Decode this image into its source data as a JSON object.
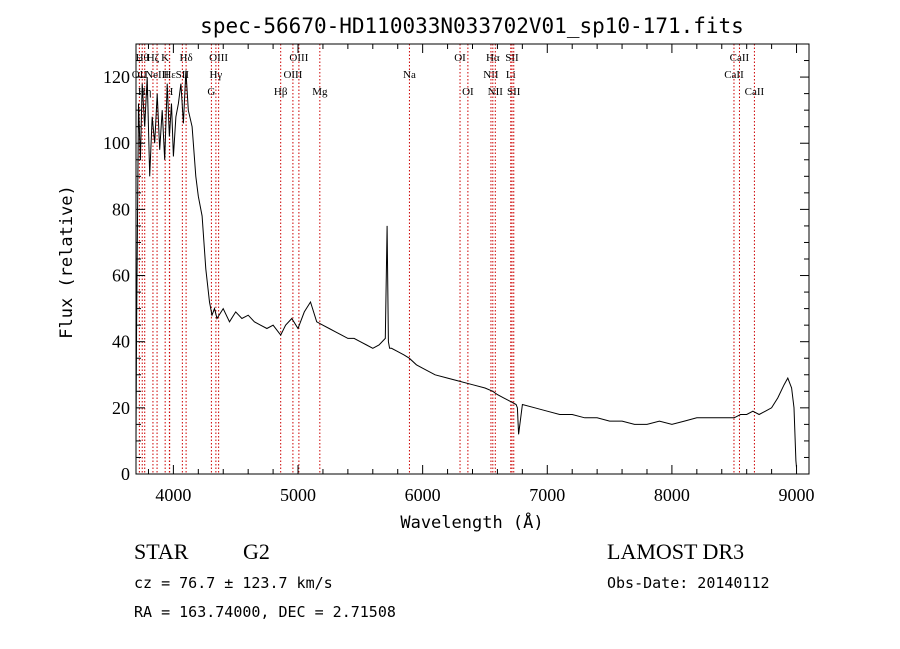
{
  "chart_data": {
    "type": "line",
    "title": "spec-56670-HD110033N033702V01_sp10-171.fits",
    "xlabel": "Wavelength (Å)",
    "ylabel": "Flux (relative)",
    "xlim": [
      3700,
      9100
    ],
    "ylim": [
      0,
      130
    ],
    "xticks": [
      4000,
      5000,
      6000,
      7000,
      8000,
      9000
    ],
    "xtick_labels": [
      "4000",
      "5000",
      "6000",
      "7000",
      "8000",
      "9000"
    ],
    "yticks": [
      0,
      20,
      40,
      60,
      80,
      100,
      120
    ],
    "ytick_labels": [
      "0",
      "20",
      "40",
      "60",
      "80",
      "100",
      "120"
    ],
    "series": [
      {
        "name": "spectrum",
        "x": [
          3700,
          3705,
          3720,
          3735,
          3750,
          3770,
          3790,
          3810,
          3830,
          3850,
          3870,
          3890,
          3910,
          3930,
          3950,
          3968,
          3985,
          4000,
          4020,
          4040,
          4060,
          4080,
          4100,
          4120,
          4150,
          4180,
          4200,
          4230,
          4260,
          4290,
          4310,
          4330,
          4350,
          4400,
          4450,
          4500,
          4550,
          4600,
          4650,
          4700,
          4750,
          4800,
          4861,
          4900,
          4950,
          5000,
          5050,
          5100,
          5150,
          5200,
          5250,
          5300,
          5350,
          5400,
          5450,
          5500,
          5550,
          5600,
          5650,
          5700,
          5715,
          5725,
          5735,
          5750,
          5800,
          5850,
          5893,
          5950,
          6000,
          6100,
          6200,
          6300,
          6400,
          6500,
          6563,
          6600,
          6650,
          6700,
          6750,
          6760,
          6770,
          6800,
          6900,
          7000,
          7100,
          7200,
          7300,
          7400,
          7500,
          7600,
          7700,
          7800,
          7900,
          8000,
          8100,
          8200,
          8300,
          8400,
          8500,
          8550,
          8600,
          8650,
          8700,
          8750,
          8800,
          8850,
          8900,
          8930,
          8960,
          8980,
          8995,
          9000
        ],
        "values": [
          10,
          45,
          112,
          95,
          118,
          105,
          120,
          90,
          108,
          100,
          115,
          98,
          110,
          95,
          118,
          102,
          112,
          96,
          108,
          112,
          118,
          106,
          122,
          110,
          105,
          90,
          84,
          78,
          62,
          52,
          48,
          50,
          47,
          50,
          46,
          49,
          47,
          48,
          46,
          45,
          44,
          45,
          42,
          45,
          47,
          44,
          49,
          52,
          46,
          45,
          44,
          43,
          42,
          41,
          41,
          40,
          39,
          38,
          39,
          41,
          75,
          40,
          38,
          38,
          37,
          36,
          35,
          33,
          32,
          30,
          29,
          28,
          27,
          26,
          25,
          24,
          23,
          22,
          21,
          20,
          12,
          21,
          20,
          19,
          18,
          18,
          17,
          17,
          16,
          16,
          15,
          15,
          16,
          15,
          16,
          17,
          17,
          17,
          17,
          18,
          18,
          19,
          18,
          19,
          20,
          23,
          27,
          29,
          26,
          20,
          4,
          2
        ]
      }
    ],
    "line_markers": [
      {
        "label": "OII",
        "x": 3727,
        "row": 2
      },
      {
        "label": "Hθ",
        "x": 3750,
        "row": 1
      },
      {
        "label": "Hη",
        "x": 3770,
        "row": 3
      },
      {
        "label": "Hζ",
        "x": 3836,
        "row": 1
      },
      {
        "label": "NeIII",
        "x": 3869,
        "row": 2
      },
      {
        "label": "K",
        "x": 3934,
        "row": 1
      },
      {
        "label": "H",
        "x": 3968,
        "row": 3
      },
      {
        "label": "Hε",
        "x": 3970,
        "row": 2
      },
      {
        "label": "SII",
        "x": 4072,
        "row": 2
      },
      {
        "label": "Hδ",
        "x": 4102,
        "row": 1
      },
      {
        "label": "G",
        "x": 4305,
        "row": 3
      },
      {
        "label": "Hγ",
        "x": 4341,
        "row": 2
      },
      {
        "label": "OIII",
        "x": 4363,
        "row": 1
      },
      {
        "label": "Hβ",
        "x": 4861,
        "row": 3
      },
      {
        "label": "OIII",
        "x": 4959,
        "row": 2
      },
      {
        "label": "OIII",
        "x": 5007,
        "row": 1
      },
      {
        "label": "Mg",
        "x": 5175,
        "row": 3
      },
      {
        "label": "Na",
        "x": 5894,
        "row": 2
      },
      {
        "label": "OI",
        "x": 6300,
        "row": 1
      },
      {
        "label": "OI",
        "x": 6363,
        "row": 3
      },
      {
        "label": "NII",
        "x": 6548,
        "row": 2
      },
      {
        "label": "Hα",
        "x": 6563,
        "row": 1
      },
      {
        "label": "NII",
        "x": 6583,
        "row": 3
      },
      {
        "label": "Li",
        "x": 6707,
        "row": 2
      },
      {
        "label": "SII",
        "x": 6717,
        "row": 1
      },
      {
        "label": "SII",
        "x": 6731,
        "row": 3
      },
      {
        "label": "CaII",
        "x": 8498,
        "row": 2
      },
      {
        "label": "CaII",
        "x": 8542,
        "row": 1
      },
      {
        "label": "CaII",
        "x": 8662,
        "row": 3
      }
    ]
  },
  "info": {
    "object_class": "STAR",
    "subclass": "G2",
    "survey": "LAMOST DR3",
    "cz": "cz = 76.7 ± 123.7 km/s",
    "obs_date": "Obs-Date: 20140112",
    "coords": "RA = 163.74000, DEC =    2.71508"
  },
  "colors": {
    "spectrum": "#000000",
    "marker": "#cc0000",
    "axes": "#000000"
  }
}
